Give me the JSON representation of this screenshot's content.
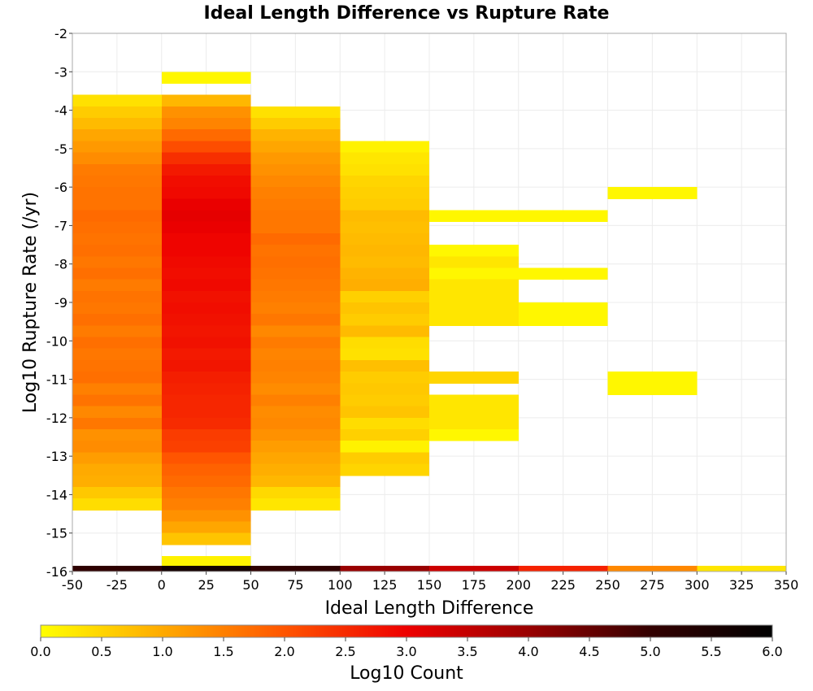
{
  "chart_data": {
    "type": "heatmap",
    "title": "Ideal Length Difference vs Rupture Rate",
    "xlabel": "Ideal Length Difference",
    "ylabel": "Log10 Rupture Rate (/yr)",
    "xlim": [
      -50,
      350
    ],
    "ylim": [
      -16,
      -2
    ],
    "x_ticks": [
      "-50",
      "-25",
      "0",
      "25",
      "50",
      "75",
      "100",
      "125",
      "150",
      "175",
      "200",
      "225",
      "250",
      "275",
      "300",
      "325",
      "350"
    ],
    "y_ticks": [
      "-2",
      "-3",
      "-4",
      "-5",
      "-6",
      "-7",
      "-8",
      "-9",
      "-10",
      "-11",
      "-12",
      "-13",
      "-14",
      "-15",
      "-16"
    ],
    "grid": true,
    "colorbar": {
      "label": "Log10 Count",
      "range": [
        0.0,
        6.0
      ],
      "ticks": [
        "0.0",
        "0.5",
        "1.0",
        "1.5",
        "2.0",
        "2.5",
        "3.0",
        "3.5",
        "4.0",
        "4.5",
        "5.0",
        "5.5",
        "6.0"
      ],
      "colors": [
        "#ffff00",
        "#ffaa00",
        "#ff5500",
        "#ee0000",
        "#990000",
        "#330000",
        "#000000"
      ]
    },
    "bin_width_x": 50,
    "bin_height_y": 0.3,
    "columns": [
      {
        "x_range": [
          -50,
          0
        ],
        "cells": [
          {
            "y": -3.75,
            "v": 0.35
          },
          {
            "y": -4.05,
            "v": 0.6
          },
          {
            "y": -4.35,
            "v": 0.8
          },
          {
            "y": -4.65,
            "v": 1.05
          },
          {
            "y": -4.95,
            "v": 1.2
          },
          {
            "y": -5.25,
            "v": 1.35
          },
          {
            "y": -5.55,
            "v": 1.55
          },
          {
            "y": -5.85,
            "v": 1.6
          },
          {
            "y": -6.15,
            "v": 1.65
          },
          {
            "y": -6.45,
            "v": 1.65
          },
          {
            "y": -6.75,
            "v": 1.75
          },
          {
            "y": -7.05,
            "v": 1.7
          },
          {
            "y": -7.35,
            "v": 1.65
          },
          {
            "y": -7.65,
            "v": 1.7
          },
          {
            "y": -7.95,
            "v": 1.6
          },
          {
            "y": -8.25,
            "v": 1.7
          },
          {
            "y": -8.55,
            "v": 1.55
          },
          {
            "y": -8.85,
            "v": 1.65
          },
          {
            "y": -9.15,
            "v": 1.6
          },
          {
            "y": -9.45,
            "v": 1.7
          },
          {
            "y": -9.75,
            "v": 1.55
          },
          {
            "y": -10.05,
            "v": 1.7
          },
          {
            "y": -10.35,
            "v": 1.6
          },
          {
            "y": -10.65,
            "v": 1.65
          },
          {
            "y": -10.95,
            "v": 1.7
          },
          {
            "y": -11.25,
            "v": 1.5
          },
          {
            "y": -11.55,
            "v": 1.65
          },
          {
            "y": -11.85,
            "v": 1.4
          },
          {
            "y": -12.15,
            "v": 1.6
          },
          {
            "y": -12.45,
            "v": 1.3
          },
          {
            "y": -12.75,
            "v": 1.35
          },
          {
            "y": -13.05,
            "v": 1.15
          },
          {
            "y": -13.35,
            "v": 1.0
          },
          {
            "y": -13.65,
            "v": 0.95
          },
          {
            "y": -13.95,
            "v": 0.65
          },
          {
            "y": -14.25,
            "v": 0.4
          }
        ]
      },
      {
        "x_range": [
          0,
          50
        ],
        "cells": [
          {
            "y": -3.15,
            "v": 0.1
          },
          {
            "y": -3.75,
            "v": 0.85
          },
          {
            "y": -4.05,
            "v": 1.3
          },
          {
            "y": -4.35,
            "v": 1.45
          },
          {
            "y": -4.65,
            "v": 1.75
          },
          {
            "y": -4.95,
            "v": 2.1
          },
          {
            "y": -5.25,
            "v": 2.45
          },
          {
            "y": -5.55,
            "v": 2.7
          },
          {
            "y": -5.85,
            "v": 2.85
          },
          {
            "y": -6.15,
            "v": 2.9
          },
          {
            "y": -6.45,
            "v": 3.05
          },
          {
            "y": -6.75,
            "v": 3.1
          },
          {
            "y": -7.05,
            "v": 3.05
          },
          {
            "y": -7.35,
            "v": 2.95
          },
          {
            "y": -7.65,
            "v": 2.95
          },
          {
            "y": -7.95,
            "v": 2.9
          },
          {
            "y": -8.25,
            "v": 2.85
          },
          {
            "y": -8.55,
            "v": 2.9
          },
          {
            "y": -8.85,
            "v": 2.8
          },
          {
            "y": -9.15,
            "v": 2.85
          },
          {
            "y": -9.45,
            "v": 2.8
          },
          {
            "y": -9.75,
            "v": 2.75
          },
          {
            "y": -10.05,
            "v": 2.8
          },
          {
            "y": -10.35,
            "v": 2.7
          },
          {
            "y": -10.65,
            "v": 2.75
          },
          {
            "y": -10.95,
            "v": 2.65
          },
          {
            "y": -11.25,
            "v": 2.6
          },
          {
            "y": -11.55,
            "v": 2.55
          },
          {
            "y": -11.85,
            "v": 2.55
          },
          {
            "y": -12.15,
            "v": 2.5
          },
          {
            "y": -12.45,
            "v": 2.3
          },
          {
            "y": -12.75,
            "v": 2.25
          },
          {
            "y": -13.05,
            "v": 2.0
          },
          {
            "y": -13.35,
            "v": 1.85
          },
          {
            "y": -13.65,
            "v": 1.75
          },
          {
            "y": -13.95,
            "v": 1.6
          },
          {
            "y": -14.25,
            "v": 1.5
          },
          {
            "y": -14.55,
            "v": 1.3
          },
          {
            "y": -14.85,
            "v": 1.05
          },
          {
            "y": -15.15,
            "v": 0.7
          },
          {
            "y": -15.75,
            "v": 0.15
          }
        ]
      },
      {
        "x_range": [
          50,
          100
        ],
        "cells": [
          {
            "y": -4.05,
            "v": 0.35
          },
          {
            "y": -4.35,
            "v": 0.6
          },
          {
            "y": -4.65,
            "v": 0.9
          },
          {
            "y": -4.95,
            "v": 1.05
          },
          {
            "y": -5.25,
            "v": 1.2
          },
          {
            "y": -5.55,
            "v": 1.3
          },
          {
            "y": -5.85,
            "v": 1.4
          },
          {
            "y": -6.15,
            "v": 1.5
          },
          {
            "y": -6.45,
            "v": 1.55
          },
          {
            "y": -6.75,
            "v": 1.6
          },
          {
            "y": -7.05,
            "v": 1.6
          },
          {
            "y": -7.35,
            "v": 1.75
          },
          {
            "y": -7.65,
            "v": 1.65
          },
          {
            "y": -7.95,
            "v": 1.7
          },
          {
            "y": -8.25,
            "v": 1.65
          },
          {
            "y": -8.55,
            "v": 1.6
          },
          {
            "y": -8.85,
            "v": 1.55
          },
          {
            "y": -9.15,
            "v": 1.5
          },
          {
            "y": -9.45,
            "v": 1.6
          },
          {
            "y": -9.75,
            "v": 1.4
          },
          {
            "y": -10.05,
            "v": 1.55
          },
          {
            "y": -10.35,
            "v": 1.45
          },
          {
            "y": -10.65,
            "v": 1.5
          },
          {
            "y": -10.95,
            "v": 1.45
          },
          {
            "y": -11.25,
            "v": 1.35
          },
          {
            "y": -11.55,
            "v": 1.5
          },
          {
            "y": -11.85,
            "v": 1.35
          },
          {
            "y": -12.15,
            "v": 1.4
          },
          {
            "y": -12.45,
            "v": 1.3
          },
          {
            "y": -12.75,
            "v": 1.15
          },
          {
            "y": -13.05,
            "v": 1.05
          },
          {
            "y": -13.35,
            "v": 0.95
          },
          {
            "y": -13.65,
            "v": 0.85
          },
          {
            "y": -13.95,
            "v": 0.45
          },
          {
            "y": -14.25,
            "v": 0.3
          }
        ]
      },
      {
        "x_range": [
          100,
          150
        ],
        "cells": [
          {
            "y": -4.95,
            "v": 0.15
          },
          {
            "y": -5.25,
            "v": 0.3
          },
          {
            "y": -5.55,
            "v": 0.35
          },
          {
            "y": -5.85,
            "v": 0.5
          },
          {
            "y": -6.15,
            "v": 0.55
          },
          {
            "y": -6.45,
            "v": 0.6
          },
          {
            "y": -6.75,
            "v": 0.8
          },
          {
            "y": -7.05,
            "v": 0.75
          },
          {
            "y": -7.35,
            "v": 0.8
          },
          {
            "y": -7.65,
            "v": 0.85
          },
          {
            "y": -7.95,
            "v": 0.8
          },
          {
            "y": -8.25,
            "v": 0.9
          },
          {
            "y": -8.55,
            "v": 0.95
          },
          {
            "y": -8.85,
            "v": 0.55
          },
          {
            "y": -9.15,
            "v": 0.7
          },
          {
            "y": -9.45,
            "v": 0.6
          },
          {
            "y": -9.75,
            "v": 0.8
          },
          {
            "y": -10.05,
            "v": 0.4
          },
          {
            "y": -10.35,
            "v": 0.35
          },
          {
            "y": -10.65,
            "v": 0.75
          },
          {
            "y": -10.95,
            "v": 0.6
          },
          {
            "y": -11.25,
            "v": 0.65
          },
          {
            "y": -11.55,
            "v": 0.6
          },
          {
            "y": -11.85,
            "v": 0.7
          },
          {
            "y": -12.15,
            "v": 0.4
          },
          {
            "y": -12.45,
            "v": 0.55
          },
          {
            "y": -12.75,
            "v": 0.15
          },
          {
            "y": -13.05,
            "v": 0.6
          },
          {
            "y": -13.35,
            "v": 0.5
          }
        ]
      },
      {
        "x_range": [
          150,
          200
        ],
        "cells": [
          {
            "y": -6.75,
            "v": 0.1
          },
          {
            "y": -7.65,
            "v": 0.1
          },
          {
            "y": -7.95,
            "v": 0.3
          },
          {
            "y": -8.25,
            "v": 0.1
          },
          {
            "y": -8.55,
            "v": 0.3
          },
          {
            "y": -8.85,
            "v": 0.3
          },
          {
            "y": -9.15,
            "v": 0.3
          },
          {
            "y": -9.45,
            "v": 0.3
          },
          {
            "y": -10.95,
            "v": 0.5
          },
          {
            "y": -11.55,
            "v": 0.3
          },
          {
            "y": -11.85,
            "v": 0.3
          },
          {
            "y": -12.15,
            "v": 0.3
          },
          {
            "y": -12.45,
            "v": 0.1
          }
        ]
      },
      {
        "x_range": [
          200,
          250
        ],
        "cells": [
          {
            "y": -6.75,
            "v": 0.1
          },
          {
            "y": -8.25,
            "v": 0.1
          },
          {
            "y": -9.15,
            "v": 0.1
          },
          {
            "y": -9.45,
            "v": 0.1
          }
        ]
      },
      {
        "x_range": [
          250,
          300
        ],
        "cells": [
          {
            "y": -6.15,
            "v": 0.1
          },
          {
            "y": -10.95,
            "v": 0.1
          },
          {
            "y": -11.25,
            "v": 0.1
          }
        ]
      }
    ],
    "bottom_strip": [
      {
        "x_range": [
          -50,
          0
        ],
        "v": 5.1
      },
      {
        "x_range": [
          0,
          50
        ],
        "v": 5.6
      },
      {
        "x_range": [
          50,
          100
        ],
        "v": 5.1
      },
      {
        "x_range": [
          100,
          150
        ],
        "v": 4.0
      },
      {
        "x_range": [
          150,
          200
        ],
        "v": 3.4
      },
      {
        "x_range": [
          200,
          250
        ],
        "v": 2.6
      },
      {
        "x_range": [
          250,
          300
        ],
        "v": 1.4
      },
      {
        "x_range": [
          300,
          350
        ],
        "v": 0.3
      }
    ]
  }
}
